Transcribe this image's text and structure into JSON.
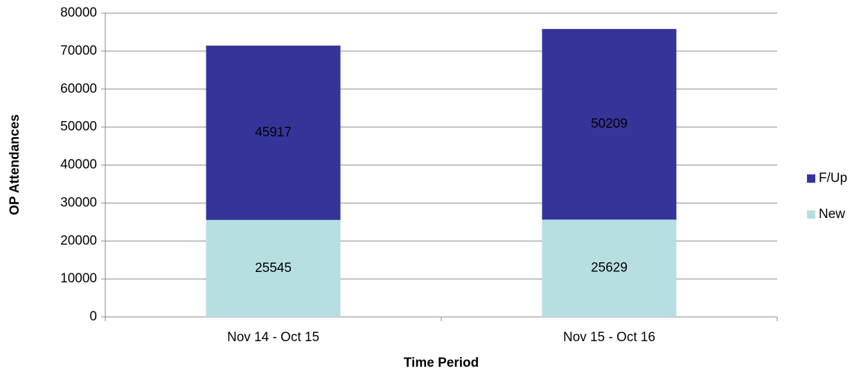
{
  "chart_data": {
    "type": "stacked_bar",
    "categories": [
      "Nov 14 - Oct 15",
      "Nov 15 - Oct 16"
    ],
    "series": [
      {
        "name": "New",
        "color": "#b7dfe1",
        "values": [
          25545,
          25629
        ]
      },
      {
        "name": "F/Up",
        "color": "#353599",
        "values": [
          45917,
          50209
        ]
      }
    ],
    "xlabel": "Time Period",
    "ylabel": "OP Attendances",
    "ylim": [
      0,
      80000
    ],
    "yticks": [
      0,
      10000,
      20000,
      30000,
      40000,
      50000,
      60000,
      70000,
      80000
    ],
    "grid": true,
    "legend": "right"
  }
}
